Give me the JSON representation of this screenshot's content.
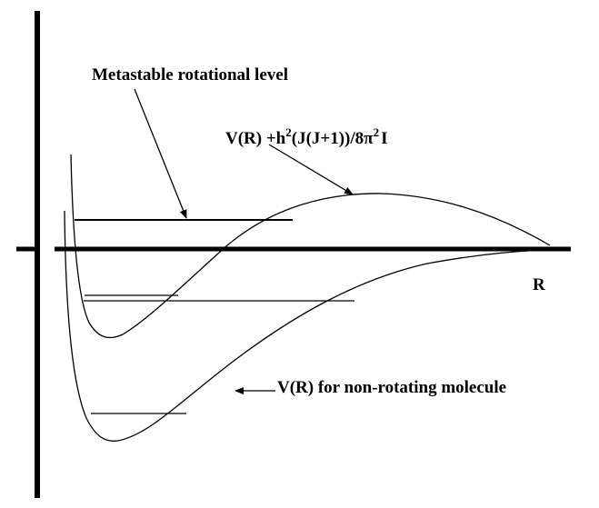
{
  "labels": {
    "metastable": "Metastable rotational level",
    "effective_potential": {
      "part1": "V(R) +h",
      "sup1": "2",
      "part2": "(J(J+1))/8π",
      "sup2": "2",
      "part3": "I"
    },
    "axis_r": "R",
    "nonrotating": "V(R) for non-rotating molecule"
  },
  "colors": {
    "ink": "#000000",
    "background": "#ffffff"
  }
}
